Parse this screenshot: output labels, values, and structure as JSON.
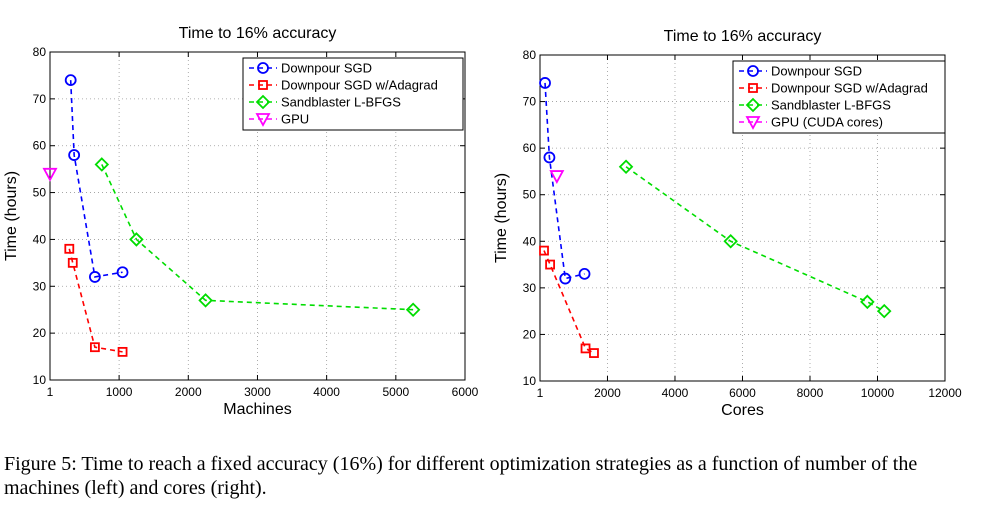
{
  "caption": "Figure 5: Time to reach a fixed accuracy (16%) for different optimization strategies as a function of number of the machines (left) and cores (right).",
  "chart_data": [
    {
      "type": "line",
      "title": "Time to 16% accuracy",
      "xlabel": "Machines",
      "ylabel": "Time (hours)",
      "xlim": [
        1,
        6000
      ],
      "ylim": [
        10,
        80
      ],
      "xticks": [
        1,
        1000,
        2000,
        3000,
        4000,
        5000,
        6000
      ],
      "yticks": [
        10,
        20,
        30,
        40,
        50,
        60,
        70,
        80
      ],
      "grid": true,
      "legend_position": "top-right",
      "series": [
        {
          "name": "Downpour SGD",
          "color": "#0000ff",
          "marker": "circle",
          "x": [
            300,
            350,
            650,
            1050
          ],
          "y": [
            74,
            58,
            32,
            33
          ]
        },
        {
          "name": "Downpour SGD w/Adagrad",
          "color": "#ff0000",
          "marker": "square",
          "x": [
            280,
            330,
            650,
            1050
          ],
          "y": [
            38,
            35,
            17,
            16
          ]
        },
        {
          "name": "Sandblaster L-BFGS",
          "color": "#00dd00",
          "marker": "diamond",
          "x": [
            750,
            1250,
            2250,
            5250
          ],
          "y": [
            56,
            40,
            27,
            25
          ]
        },
        {
          "name": "GPU",
          "color": "#ff00ff",
          "marker": "triangle-down",
          "x": [
            1
          ],
          "y": [
            54
          ]
        }
      ]
    },
    {
      "type": "line",
      "title": "Time to 16% accuracy",
      "xlabel": "Cores",
      "ylabel": "Time (hours)",
      "xlim": [
        1,
        12000
      ],
      "ylim": [
        10,
        80
      ],
      "xticks": [
        1,
        2000,
        4000,
        6000,
        8000,
        10000,
        12000
      ],
      "yticks": [
        10,
        20,
        30,
        40,
        50,
        60,
        70,
        80
      ],
      "grid": true,
      "legend_position": "top-right",
      "series": [
        {
          "name": "Downpour SGD",
          "color": "#0000ff",
          "marker": "circle",
          "x": [
            150,
            280,
            750,
            1320
          ],
          "y": [
            74,
            58,
            32,
            33
          ]
        },
        {
          "name": "Downpour SGD w/Adagrad",
          "color": "#ff0000",
          "marker": "square",
          "x": [
            120,
            300,
            1350,
            1600
          ],
          "y": [
            38,
            35,
            17,
            16
          ]
        },
        {
          "name": "Sandblaster L-BFGS",
          "color": "#00dd00",
          "marker": "diamond",
          "x": [
            2550,
            5650,
            9700,
            10200
          ],
          "y": [
            56,
            40,
            27,
            25
          ]
        },
        {
          "name": "GPU (CUDA cores)",
          "color": "#ff00ff",
          "marker": "triangle-down",
          "x": [
            500
          ],
          "y": [
            54
          ]
        }
      ]
    }
  ]
}
